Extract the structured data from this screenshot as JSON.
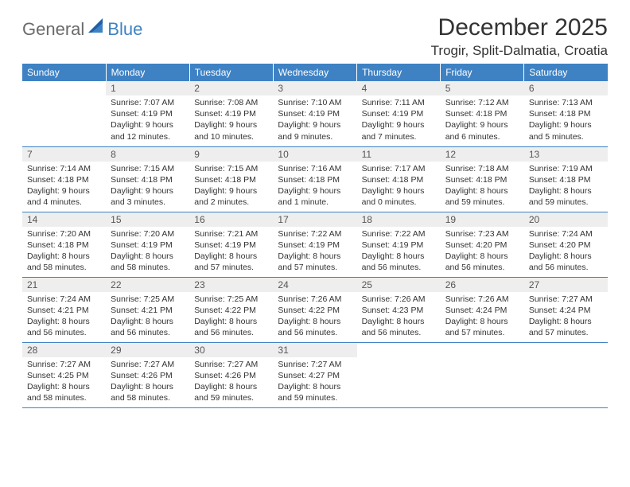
{
  "brand": {
    "part1": "General",
    "part2": "Blue"
  },
  "title": "December 2025",
  "location": "Trogir, Split-Dalmatia, Croatia",
  "colors": {
    "header_bg": "#3e82c4",
    "header_text": "#ffffff",
    "daynum_bg": "#eeeeee",
    "daynum_text": "#555555",
    "body_text": "#333333",
    "brand_gray": "#6a6a6a",
    "brand_blue": "#3e82c4",
    "rule": "#3e82c4"
  },
  "weekdays": [
    "Sunday",
    "Monday",
    "Tuesday",
    "Wednesday",
    "Thursday",
    "Friday",
    "Saturday"
  ],
  "weeks": [
    [
      {
        "empty": true
      },
      {
        "n": "1",
        "sr": "Sunrise: 7:07 AM",
        "ss": "Sunset: 4:19 PM",
        "d1": "Daylight: 9 hours",
        "d2": "and 12 minutes."
      },
      {
        "n": "2",
        "sr": "Sunrise: 7:08 AM",
        "ss": "Sunset: 4:19 PM",
        "d1": "Daylight: 9 hours",
        "d2": "and 10 minutes."
      },
      {
        "n": "3",
        "sr": "Sunrise: 7:10 AM",
        "ss": "Sunset: 4:19 PM",
        "d1": "Daylight: 9 hours",
        "d2": "and 9 minutes."
      },
      {
        "n": "4",
        "sr": "Sunrise: 7:11 AM",
        "ss": "Sunset: 4:19 PM",
        "d1": "Daylight: 9 hours",
        "d2": "and 7 minutes."
      },
      {
        "n": "5",
        "sr": "Sunrise: 7:12 AM",
        "ss": "Sunset: 4:18 PM",
        "d1": "Daylight: 9 hours",
        "d2": "and 6 minutes."
      },
      {
        "n": "6",
        "sr": "Sunrise: 7:13 AM",
        "ss": "Sunset: 4:18 PM",
        "d1": "Daylight: 9 hours",
        "d2": "and 5 minutes."
      }
    ],
    [
      {
        "n": "7",
        "sr": "Sunrise: 7:14 AM",
        "ss": "Sunset: 4:18 PM",
        "d1": "Daylight: 9 hours",
        "d2": "and 4 minutes."
      },
      {
        "n": "8",
        "sr": "Sunrise: 7:15 AM",
        "ss": "Sunset: 4:18 PM",
        "d1": "Daylight: 9 hours",
        "d2": "and 3 minutes."
      },
      {
        "n": "9",
        "sr": "Sunrise: 7:15 AM",
        "ss": "Sunset: 4:18 PM",
        "d1": "Daylight: 9 hours",
        "d2": "and 2 minutes."
      },
      {
        "n": "10",
        "sr": "Sunrise: 7:16 AM",
        "ss": "Sunset: 4:18 PM",
        "d1": "Daylight: 9 hours",
        "d2": "and 1 minute."
      },
      {
        "n": "11",
        "sr": "Sunrise: 7:17 AM",
        "ss": "Sunset: 4:18 PM",
        "d1": "Daylight: 9 hours",
        "d2": "and 0 minutes."
      },
      {
        "n": "12",
        "sr": "Sunrise: 7:18 AM",
        "ss": "Sunset: 4:18 PM",
        "d1": "Daylight: 8 hours",
        "d2": "and 59 minutes."
      },
      {
        "n": "13",
        "sr": "Sunrise: 7:19 AM",
        "ss": "Sunset: 4:18 PM",
        "d1": "Daylight: 8 hours",
        "d2": "and 59 minutes."
      }
    ],
    [
      {
        "n": "14",
        "sr": "Sunrise: 7:20 AM",
        "ss": "Sunset: 4:18 PM",
        "d1": "Daylight: 8 hours",
        "d2": "and 58 minutes."
      },
      {
        "n": "15",
        "sr": "Sunrise: 7:20 AM",
        "ss": "Sunset: 4:19 PM",
        "d1": "Daylight: 8 hours",
        "d2": "and 58 minutes."
      },
      {
        "n": "16",
        "sr": "Sunrise: 7:21 AM",
        "ss": "Sunset: 4:19 PM",
        "d1": "Daylight: 8 hours",
        "d2": "and 57 minutes."
      },
      {
        "n": "17",
        "sr": "Sunrise: 7:22 AM",
        "ss": "Sunset: 4:19 PM",
        "d1": "Daylight: 8 hours",
        "d2": "and 57 minutes."
      },
      {
        "n": "18",
        "sr": "Sunrise: 7:22 AM",
        "ss": "Sunset: 4:19 PM",
        "d1": "Daylight: 8 hours",
        "d2": "and 56 minutes."
      },
      {
        "n": "19",
        "sr": "Sunrise: 7:23 AM",
        "ss": "Sunset: 4:20 PM",
        "d1": "Daylight: 8 hours",
        "d2": "and 56 minutes."
      },
      {
        "n": "20",
        "sr": "Sunrise: 7:24 AM",
        "ss": "Sunset: 4:20 PM",
        "d1": "Daylight: 8 hours",
        "d2": "and 56 minutes."
      }
    ],
    [
      {
        "n": "21",
        "sr": "Sunrise: 7:24 AM",
        "ss": "Sunset: 4:21 PM",
        "d1": "Daylight: 8 hours",
        "d2": "and 56 minutes."
      },
      {
        "n": "22",
        "sr": "Sunrise: 7:25 AM",
        "ss": "Sunset: 4:21 PM",
        "d1": "Daylight: 8 hours",
        "d2": "and 56 minutes."
      },
      {
        "n": "23",
        "sr": "Sunrise: 7:25 AM",
        "ss": "Sunset: 4:22 PM",
        "d1": "Daylight: 8 hours",
        "d2": "and 56 minutes."
      },
      {
        "n": "24",
        "sr": "Sunrise: 7:26 AM",
        "ss": "Sunset: 4:22 PM",
        "d1": "Daylight: 8 hours",
        "d2": "and 56 minutes."
      },
      {
        "n": "25",
        "sr": "Sunrise: 7:26 AM",
        "ss": "Sunset: 4:23 PM",
        "d1": "Daylight: 8 hours",
        "d2": "and 56 minutes."
      },
      {
        "n": "26",
        "sr": "Sunrise: 7:26 AM",
        "ss": "Sunset: 4:24 PM",
        "d1": "Daylight: 8 hours",
        "d2": "and 57 minutes."
      },
      {
        "n": "27",
        "sr": "Sunrise: 7:27 AM",
        "ss": "Sunset: 4:24 PM",
        "d1": "Daylight: 8 hours",
        "d2": "and 57 minutes."
      }
    ],
    [
      {
        "n": "28",
        "sr": "Sunrise: 7:27 AM",
        "ss": "Sunset: 4:25 PM",
        "d1": "Daylight: 8 hours",
        "d2": "and 58 minutes."
      },
      {
        "n": "29",
        "sr": "Sunrise: 7:27 AM",
        "ss": "Sunset: 4:26 PM",
        "d1": "Daylight: 8 hours",
        "d2": "and 58 minutes."
      },
      {
        "n": "30",
        "sr": "Sunrise: 7:27 AM",
        "ss": "Sunset: 4:26 PM",
        "d1": "Daylight: 8 hours",
        "d2": "and 59 minutes."
      },
      {
        "n": "31",
        "sr": "Sunrise: 7:27 AM",
        "ss": "Sunset: 4:27 PM",
        "d1": "Daylight: 8 hours",
        "d2": "and 59 minutes."
      },
      {
        "empty": true
      },
      {
        "empty": true
      },
      {
        "empty": true
      }
    ]
  ]
}
